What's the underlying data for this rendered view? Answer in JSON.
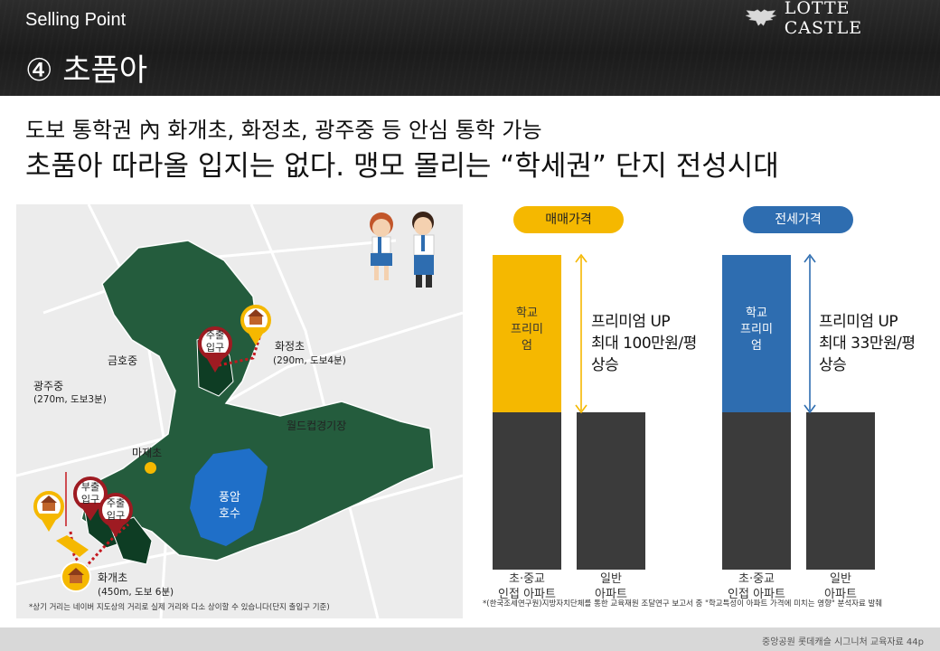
{
  "header": {
    "section_label": "Selling Point",
    "title": "④ 초품아",
    "logo_text": "LOTTE CASTLE",
    "logo_icon": "eagle-emblem-icon"
  },
  "headline": {
    "line1": "도보 통학권 內 화개초, 화정초, 광주중 등 안심 통학 가능",
    "line2": "초품아 따라올 입지는 없다. 맹모 몰리는 “학세권” 단지 전성시대"
  },
  "map": {
    "labels": {
      "geumho": "금호중",
      "hwajeong_name": "화정초",
      "hwajeong_dist": "(290m, 도보4분)",
      "gwangju_name": "광주중",
      "gwangju_dist": "(270m, 도보3분)",
      "worldcup": "월드컵경기장",
      "majae": "마재초",
      "pungam_line1": "풍암",
      "pungam_line2": "호수",
      "hwagae_name": "화개초",
      "hwagae_dist": "(450m, 도보 6분)",
      "main_gate_top_1": "주출",
      "main_gate_top_2": "입구",
      "sub_gate_1": "부출",
      "sub_gate_2": "입구",
      "main_gate_bottom_1": "주출",
      "main_gate_bottom_2": "입구"
    },
    "note": "*상기 거리는 네이버 지도상의 거리로 실제 거리와 다소 상이할 수 있습니다(단지 출입구 기준)",
    "colors": {
      "park": "#245c3d",
      "complex": "#0e3d24",
      "lake": "#1f6fc8",
      "route": "#c4181f",
      "school_pin": "#f5b800"
    }
  },
  "chart": {
    "sale": {
      "pill_label": "매매가격",
      "premium_bar_text": [
        "학교",
        "프리미",
        "엄"
      ],
      "premium_text": [
        "프리미엄 UP",
        "최대 100만원/평",
        "상승"
      ],
      "color": "#f5b800"
    },
    "jeonse": {
      "pill_label": "전세가격",
      "premium_bar_text": [
        "학교",
        "프리미",
        "엄"
      ],
      "premium_text": [
        "프리미엄 UP",
        "최대 33만원/평",
        "상승"
      ],
      "color": "#2e6db0"
    },
    "base_color": "#3b3b3b",
    "bar_labels": {
      "school_adj_1": "초·중교",
      "school_adj_2": "인접 아파트",
      "general_1": "일반",
      "general_2": "아파트"
    },
    "source": "*(한국조세연구원)지방자치단체를 통한 교육재원 조달연구 보고서 중 \"학교특성이 아파트 가격에 미치는 영향\" 분석자료 발췌"
  },
  "footer": {
    "text": "중앙공원 롯데캐슬 시그니처 교육자료 44p"
  }
}
